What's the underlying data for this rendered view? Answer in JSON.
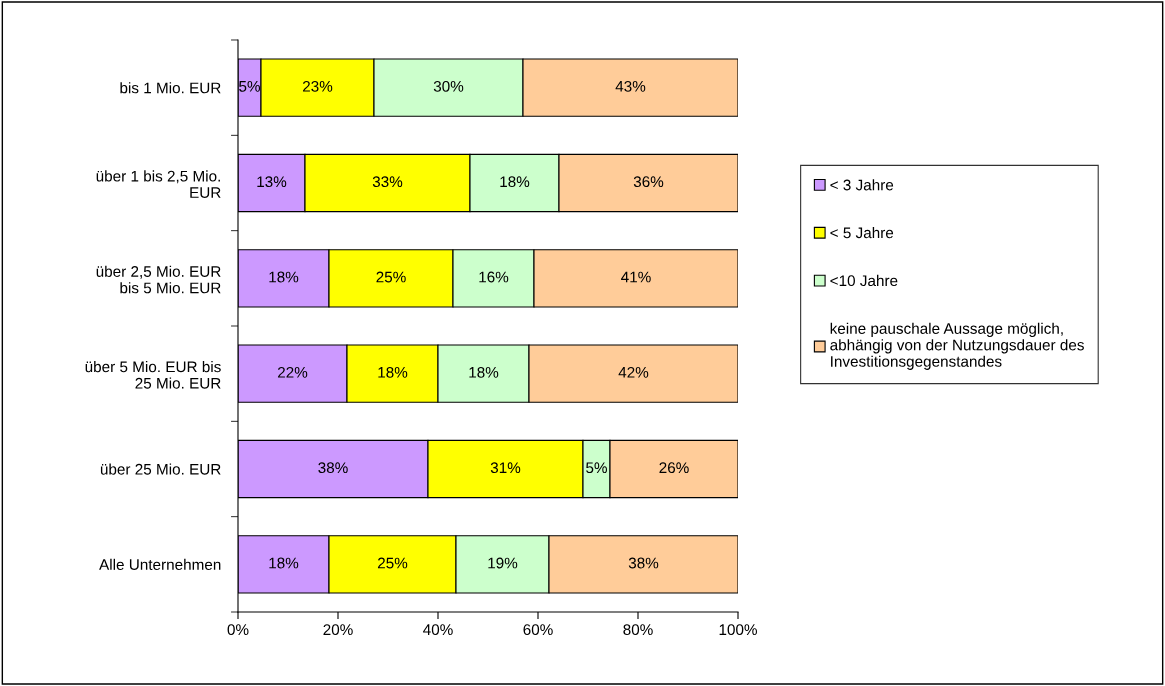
{
  "chart_data": {
    "type": "bar",
    "orientation": "horizontal",
    "stacked": true,
    "categories": [
      "bis 1 Mio. EUR",
      "über 1 bis 2,5 Mio.\nEUR",
      "über 2,5 Mio. EUR\nbis 5 Mio. EUR",
      "über 5 Mio. EUR bis\n25 Mio. EUR",
      "über 25 Mio. EUR",
      "Alle Unternehmen"
    ],
    "series": [
      {
        "name": "< 3 Jahre",
        "color": "#cc99ff",
        "values": [
          4.6,
          13.4,
          18.2,
          21.8,
          38.0,
          18.2
        ],
        "value_labels": [
          "5%",
          "13%",
          "18%",
          "22%",
          "38%",
          "18%"
        ]
      },
      {
        "name": "< 5 Jahre",
        "color": "#ffff00",
        "values": [
          22.6,
          33.0,
          24.8,
          18.2,
          31.0,
          25.4
        ],
        "value_labels": [
          "23%",
          "33%",
          "25%",
          "18%",
          "31%",
          "25%"
        ]
      },
      {
        "name": "<10 Jahre",
        "color": "#ccffcc",
        "values": [
          29.8,
          17.8,
          16.2,
          18.2,
          5.4,
          18.6
        ],
        "value_labels": [
          "30%",
          "18%",
          "16%",
          "18%",
          "5%",
          "19%"
        ]
      },
      {
        "name": "keine pauschale Aussage möglich,\nabhängig von der Nutzungsdauer des\nInvestitionsgegenstandes",
        "color": "#ffcc99",
        "values": [
          43.0,
          35.8,
          40.8,
          41.8,
          25.6,
          37.8
        ],
        "value_labels": [
          "43%",
          "36%",
          "41%",
          "42%",
          "26%",
          "38%"
        ]
      }
    ],
    "xlim": [
      0,
      100
    ],
    "xticks": [
      {
        "value": 0,
        "label": "0%"
      },
      {
        "value": 20,
        "label": "20%"
      },
      {
        "value": 40,
        "label": "40%"
      },
      {
        "value": 60,
        "label": "60%"
      },
      {
        "value": 80,
        "label": "80%"
      },
      {
        "value": 100,
        "label": "100%"
      }
    ],
    "grid": false,
    "legend": "right"
  }
}
